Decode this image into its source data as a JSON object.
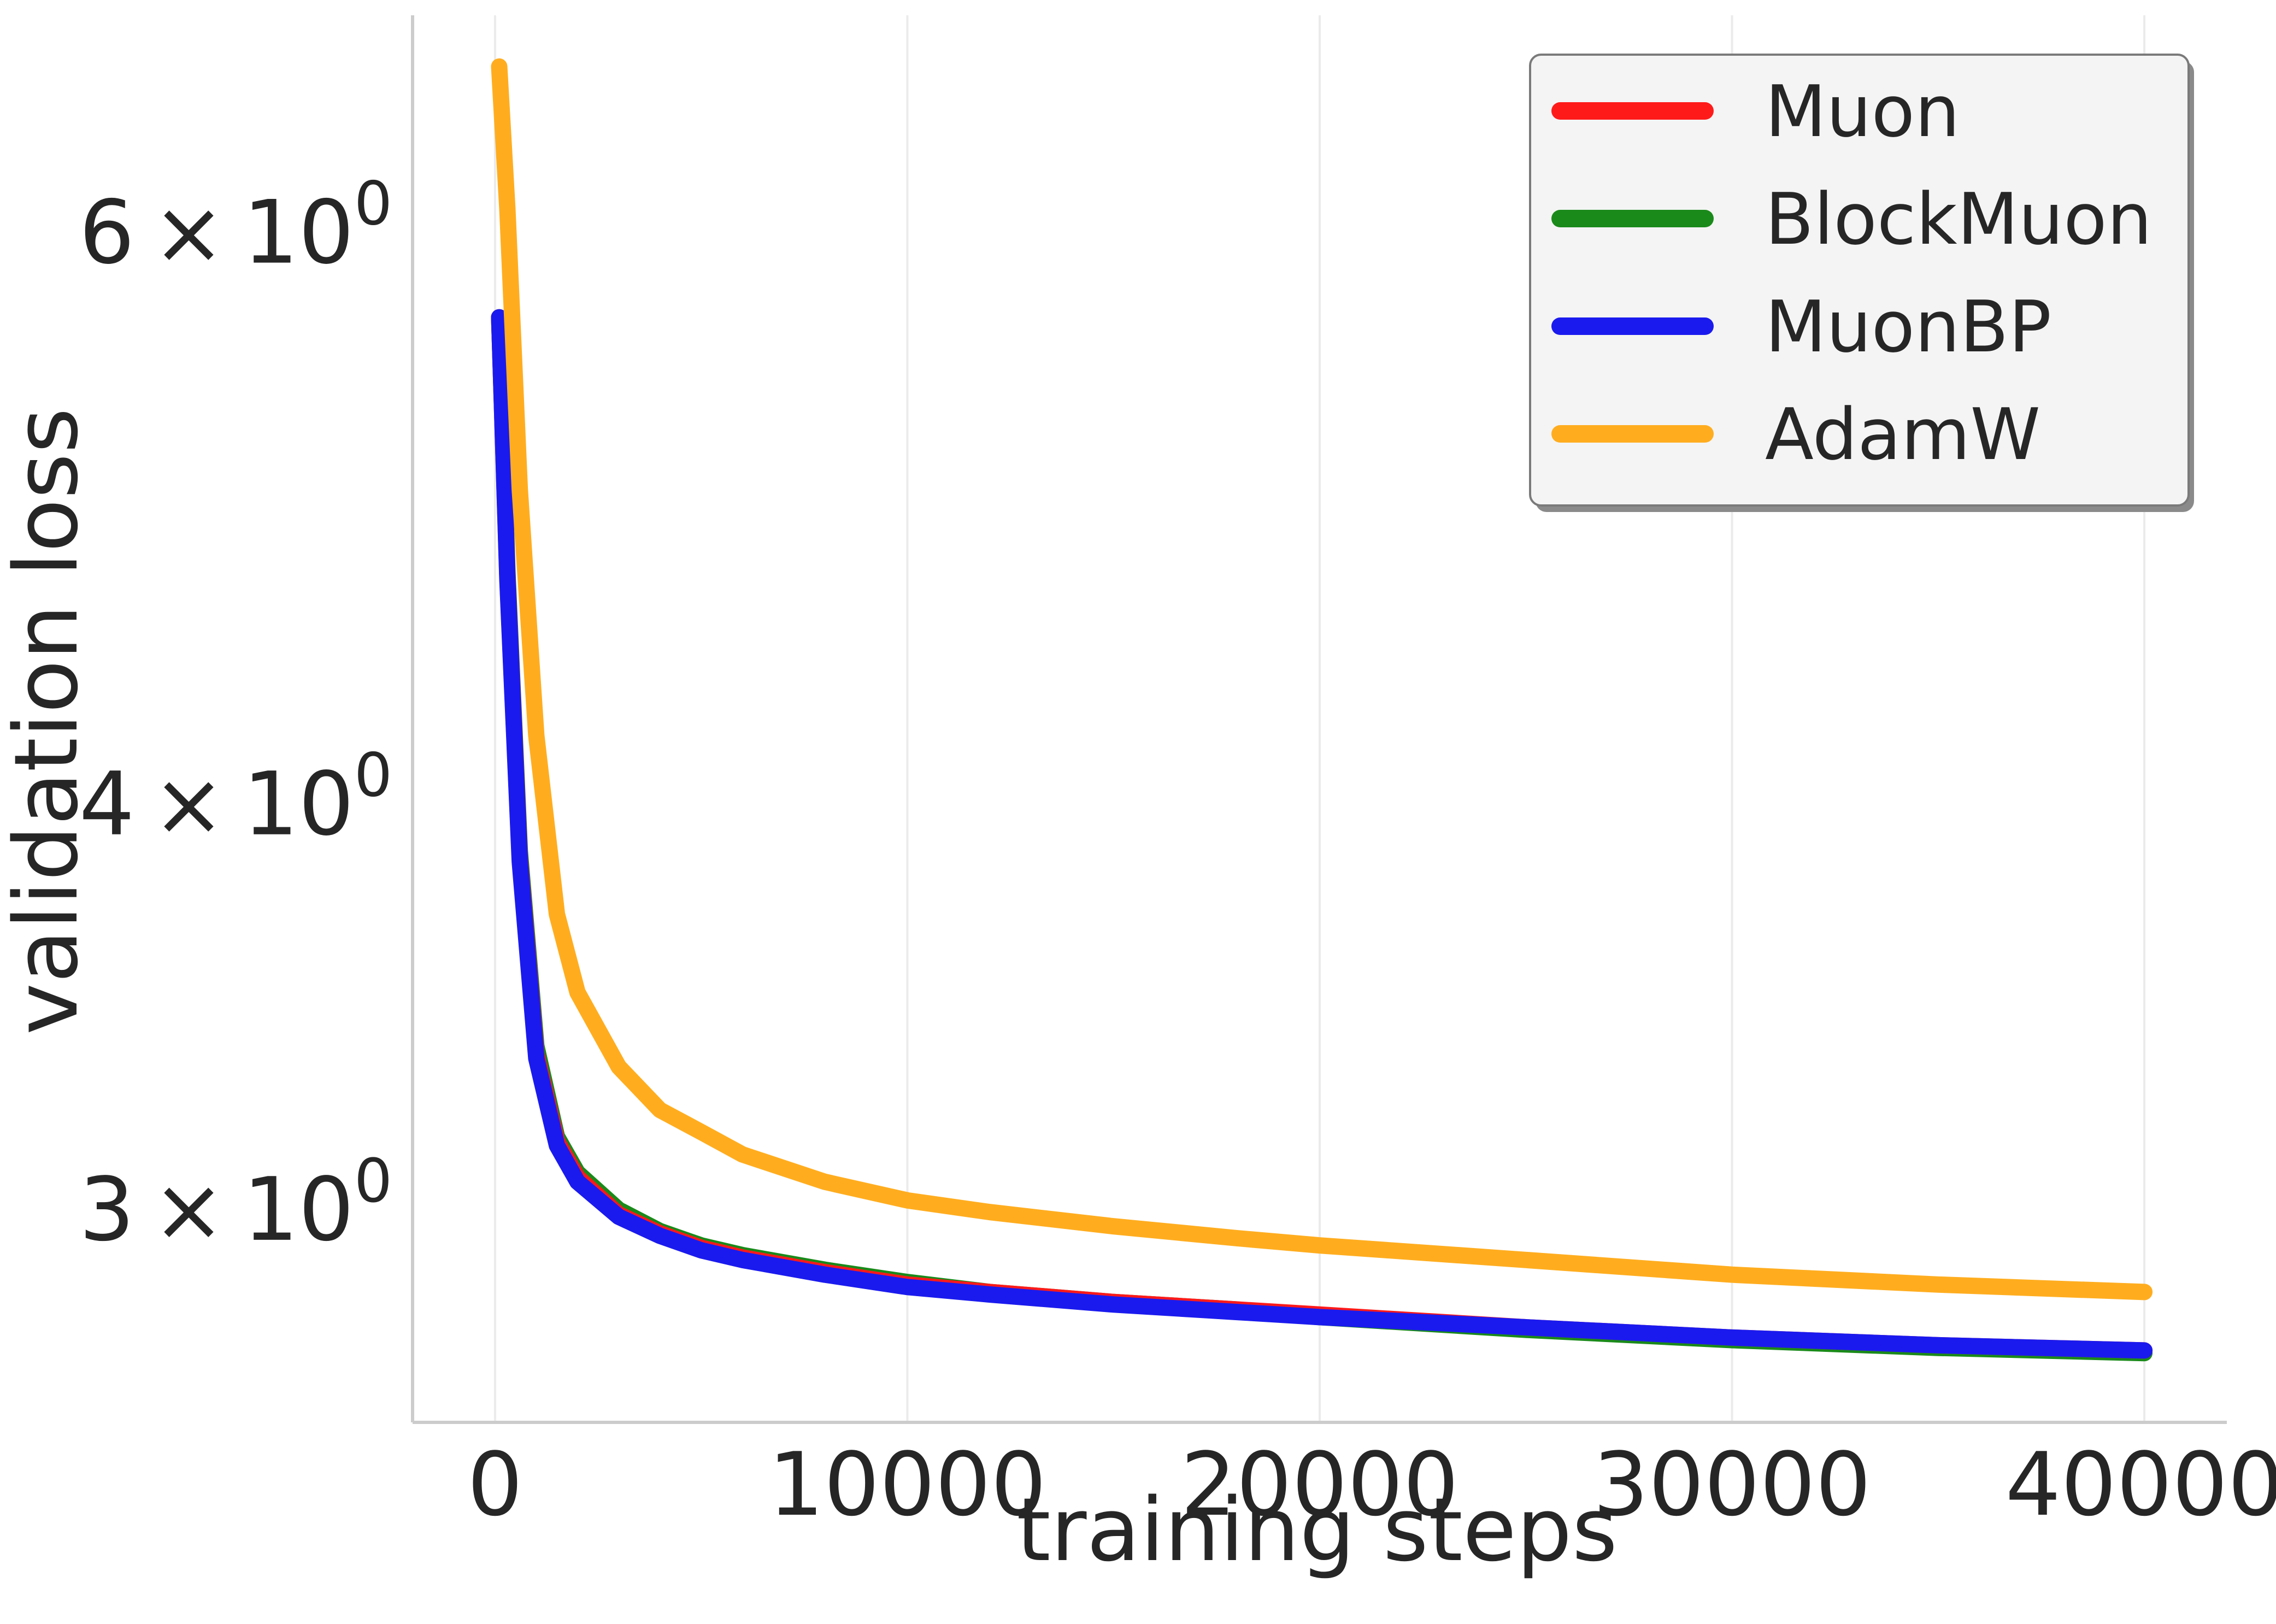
{
  "chart_data": {
    "type": "line",
    "title": "",
    "xlabel": "training steps",
    "ylabel": "validation loss",
    "xlim": [
      -2000,
      42000
    ],
    "ylim": [
      2.58,
      7.0
    ],
    "yscale": "log",
    "grid": "vertical",
    "legend_position": "top-right",
    "x_ticks": [
      0,
      10000,
      20000,
      30000,
      40000
    ],
    "x_tick_labels": [
      "0",
      "10000",
      "20000",
      "30000",
      "40000"
    ],
    "y_ticks": [
      3,
      4,
      6
    ],
    "y_tick_labels": [
      {
        "mantissa": "3",
        "times": "×",
        "base": "10",
        "exp": "0"
      },
      {
        "mantissa": "4",
        "times": "×",
        "base": "10",
        "exp": "0"
      },
      {
        "mantissa": "6",
        "times": "×",
        "base": "10",
        "exp": "0"
      }
    ],
    "series": [
      {
        "name": "Muon",
        "color": "#ff1a1a",
        "x": [
          100,
          300,
          600,
          1000,
          1500,
          2000,
          3000,
          4000,
          5000,
          6000,
          8000,
          10000,
          12000,
          15000,
          18000,
          20000,
          25000,
          30000,
          35000,
          40000
        ],
        "y": [
          5.65,
          4.7,
          3.85,
          3.35,
          3.15,
          3.07,
          2.99,
          2.95,
          2.92,
          2.9,
          2.87,
          2.845,
          2.83,
          2.81,
          2.795,
          2.785,
          2.76,
          2.74,
          2.725,
          2.715
        ]
      },
      {
        "name": "BlockMuon",
        "color": "#1a8a1a",
        "x": [
          100,
          300,
          600,
          1000,
          1500,
          2000,
          3000,
          4000,
          5000,
          6000,
          8000,
          10000,
          12000,
          15000,
          18000,
          20000,
          25000,
          30000,
          35000,
          40000
        ],
        "y": [
          5.65,
          4.72,
          3.87,
          3.37,
          3.16,
          3.08,
          3.0,
          2.955,
          2.925,
          2.905,
          2.875,
          2.85,
          2.83,
          2.81,
          2.795,
          2.78,
          2.755,
          2.735,
          2.72,
          2.71
        ]
      },
      {
        "name": "MuonBP",
        "color": "#1a1aee",
        "x": [
          100,
          300,
          600,
          1000,
          1500,
          2000,
          3000,
          4000,
          5000,
          6000,
          8000,
          10000,
          12000,
          15000,
          18000,
          20000,
          25000,
          30000,
          35000,
          40000
        ],
        "y": [
          5.65,
          4.69,
          3.84,
          3.34,
          3.14,
          3.06,
          2.985,
          2.945,
          2.915,
          2.895,
          2.865,
          2.84,
          2.825,
          2.805,
          2.79,
          2.78,
          2.76,
          2.74,
          2.725,
          2.715
        ]
      },
      {
        "name": "AdamW",
        "color": "#ffad1f",
        "x": [
          100,
          300,
          600,
          1000,
          1500,
          2000,
          3000,
          4000,
          5000,
          6000,
          8000,
          10000,
          12000,
          15000,
          18000,
          20000,
          25000,
          30000,
          35000,
          40000
        ],
        "y": [
          6.75,
          6.1,
          5.0,
          4.2,
          3.7,
          3.5,
          3.32,
          3.22,
          3.17,
          3.12,
          3.06,
          3.02,
          2.995,
          2.965,
          2.94,
          2.925,
          2.895,
          2.865,
          2.845,
          2.83
        ]
      }
    ]
  }
}
